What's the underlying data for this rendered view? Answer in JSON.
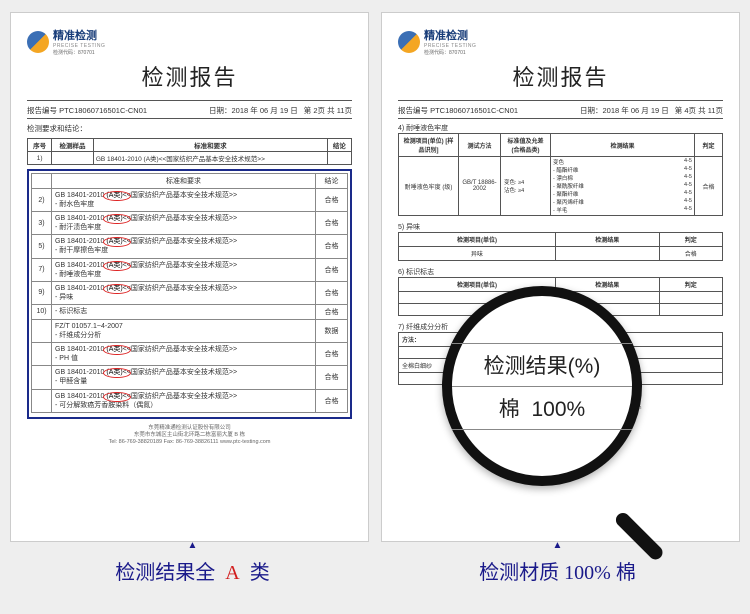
{
  "background": "#eeeeee",
  "logo": {
    "brand": "精准检测",
    "brand_en": "PRECISE TESTING",
    "cert_code": "检测代码：870701"
  },
  "doc_title": "检测报告",
  "meta": {
    "report_no_label": "报告编号",
    "report_no": "PTC18060716501C-CN01",
    "date_label": "日期：",
    "date": "2018 年 06 月 19 日",
    "page_left": "第 2页   共 11页",
    "page_right": "第 4页   共 11页"
  },
  "left_doc": {
    "section_label": "检测要求和结论：",
    "mini_header": {
      "c1": "序号",
      "c2": "检测样品",
      "c3": "标准和要求",
      "c4": "结论"
    },
    "mini_row": {
      "std": "GB 18401-2010 (A类)<<国家纺织产品基本安全技术规范>>"
    },
    "hl_header": {
      "req": "标准和要求",
      "conc": "结论"
    },
    "items": [
      {
        "idx": "2)",
        "std": "GB 18401-2010 (A类)<<国家纺织产品基本安全技术规范>>",
        "sub": "- 耐水色牢度",
        "conc": "合格"
      },
      {
        "idx": "3)",
        "std": "GB 18401-2010 (A类)<<国家纺织产品基本安全技术规范>>",
        "sub": "- 耐汗渍色牢度",
        "conc": "合格"
      },
      {
        "idx": "5)",
        "std": "GB 18401-2010 (A类)<<国家纺织产品基本安全技术规范>>",
        "sub": "- 耐干摩擦色牢度",
        "conc": "合格"
      },
      {
        "idx": "7)",
        "std": "GB 18401-2010 (A类)<<国家纺织产品基本安全技术规范>>",
        "sub": "- 耐唾液色牢度",
        "conc": "合格"
      },
      {
        "idx": "9)",
        "std": "GB 18401-2010 (A类)<<国家纺织产品基本安全技术规范>>",
        "sub": "- 异味",
        "conc": "合格"
      },
      {
        "idx": "10)",
        "std": "- 标识标志",
        "sub": "",
        "conc": "合格"
      },
      {
        "idx": "",
        "std": "FZ/T 01057.1~4-2007",
        "sub": "- 纤维成分分析",
        "conc": "数据"
      },
      {
        "idx": "",
        "std": "GB 18401-2010 (A类)<<国家纺织产品基本安全技术规范>>",
        "sub": "- PH 值",
        "conc": "合格"
      },
      {
        "idx": "",
        "std": "GB 18401-2010 (A类)<<国家纺织产品基本安全技术规范>>",
        "sub": "- 甲醛含量",
        "conc": "合格"
      },
      {
        "idx": "",
        "std": "GB 18401-2010 (A类)<<国家纺织产品基本安全技术规范>>",
        "sub": "- 可分解致癌芳香胺染料（偶氮）",
        "conc": "合格"
      }
    ]
  },
  "right_doc": {
    "section4": "4) 耐唾液色牢度",
    "tbl_headers": [
      "检测项目(单位)\n[样品识别]",
      "测试方法",
      "标准值及允差\n(合格品类)",
      "检测结果",
      "判定"
    ],
    "sample": "耐唾液色牢度\n(级)",
    "method": "GB/T\n18886-2002",
    "limits": [
      "变色: ≥4",
      "沾色: ≥4"
    ],
    "result_rows": [
      {
        "label": "变色",
        "val": "4-5"
      },
      {
        "label": "- 醋酯纤维",
        "val": "4-5"
      },
      {
        "label": "- 漂白棉",
        "val": "4-5"
      },
      {
        "label": "- 聚酰胺纤维",
        "val": "4-5"
      },
      {
        "label": "- 聚酯纤维",
        "val": "4-5"
      },
      {
        "label": "- 聚丙烯纤维",
        "val": "4-5"
      },
      {
        "label": "- 羊毛",
        "val": "4-5"
      }
    ],
    "verdict": "合格",
    "section5": "5) 异味",
    "sec5_row": {
      "item": "异味",
      "conc": "合格"
    },
    "section6": "6) 标识标志",
    "section7": "7) 纤维成分分析",
    "full_sample": "全棉白细纱",
    "blocks_hdr": {
      "item": "检测项目(单位)",
      "res": "检测结果",
      "j": "判定"
    }
  },
  "magnifier": {
    "line1": "检测结果(%)",
    "line2_a": "棉",
    "line2_b": "100%"
  },
  "captions": {
    "left_a": "检测结果全",
    "left_b": "A",
    "left_c": "类",
    "right": "检测材质 100% 棉"
  },
  "footer": {
    "company": "东莞精准通检测认证股份有限公司",
    "addr": "东莞市东城区主山街北环路二栋富丽大厦 B 栋",
    "tel": "Tel: 86-769-38820189    Fax: 86-769-38826111    www.ptc-testing.com"
  }
}
